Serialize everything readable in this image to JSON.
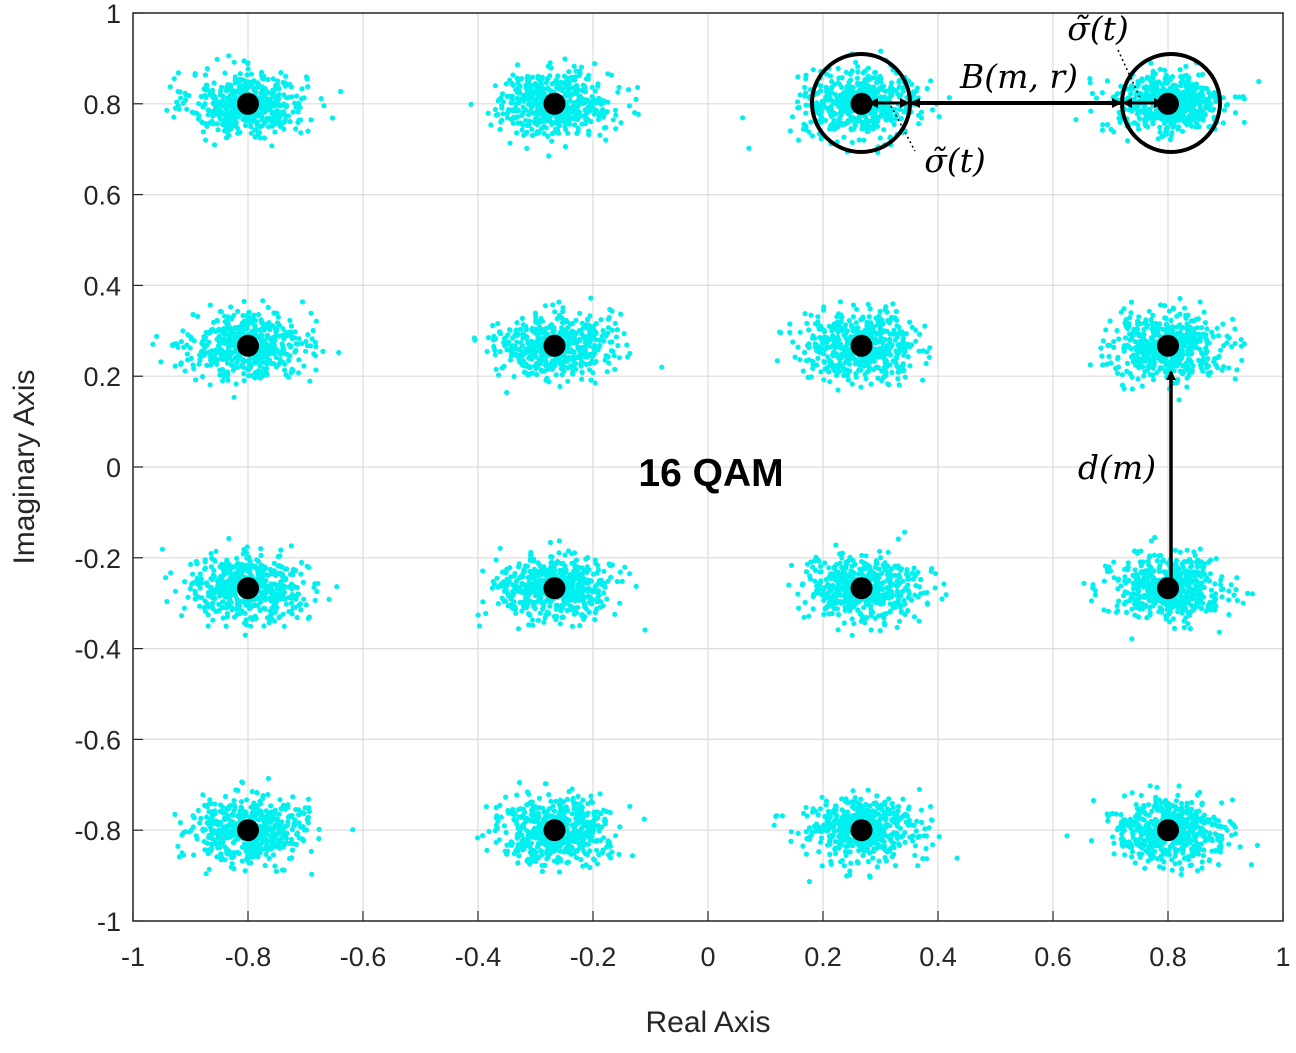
{
  "chart_data": {
    "type": "scatter",
    "title": "",
    "xlabel": "Real Axis",
    "ylabel": "Imaginary Axis",
    "xlim": [
      -1,
      1
    ],
    "ylim": [
      -1,
      1
    ],
    "grid": true,
    "xticks": [
      "-1",
      "-0.8",
      "-0.6",
      "-0.4",
      "-0.2",
      "0",
      "0.2",
      "0.4",
      "0.6",
      "0.8",
      "1"
    ],
    "yticks": [
      "-1",
      "-0.8",
      "-0.6",
      "-0.4",
      "-0.2",
      "0",
      "0.2",
      "0.4",
      "0.6",
      "0.8",
      "1"
    ],
    "series": [
      {
        "marker_color": "#00f0f0",
        "description": "received noisy samples clustered around each constellation point",
        "spread_std": [
          0.05,
          0.035
        ]
      },
      {
        "marker_color": "#000000",
        "points": [
          [
            -0.8,
            0.8
          ],
          [
            -0.267,
            0.8
          ],
          [
            0.267,
            0.8
          ],
          [
            0.8,
            0.8
          ],
          [
            -0.8,
            0.267
          ],
          [
            -0.267,
            0.267
          ],
          [
            0.267,
            0.267
          ],
          [
            0.8,
            0.267
          ],
          [
            -0.8,
            -0.267
          ],
          [
            -0.267,
            -0.267
          ],
          [
            0.267,
            -0.267
          ],
          [
            0.8,
            -0.267
          ],
          [
            -0.8,
            -0.8
          ],
          [
            -0.267,
            -0.8
          ],
          [
            0.267,
            -0.8
          ],
          [
            0.8,
            -0.8
          ]
        ]
      }
    ],
    "annotations": {
      "center_label": "16 QAM",
      "distance_label": "d(m)",
      "boundary_label": "B(m, r)",
      "sigma_label_top": "σ̃(t)",
      "sigma_label_bottom": "σ̃(t)"
    }
  }
}
